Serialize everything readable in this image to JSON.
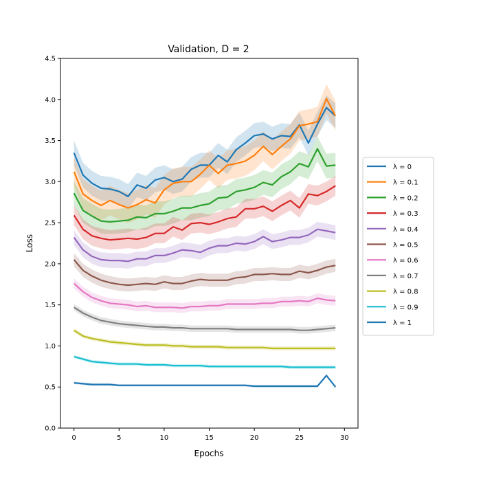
{
  "chart_data": {
    "type": "line",
    "title": "Validation, D = 2",
    "xlabel": "Epochs",
    "ylabel": "Loss",
    "xlim": [
      -1.5,
      31.5
    ],
    "ylim": [
      0.0,
      4.5
    ],
    "xticks": [
      0,
      5,
      10,
      15,
      20,
      25,
      30
    ],
    "xtick_labels": [
      "0",
      "5",
      "10",
      "15",
      "20",
      "25",
      "30"
    ],
    "yticks": [
      0.0,
      0.5,
      1.0,
      1.5,
      2.0,
      2.5,
      3.0,
      3.5,
      4.0,
      4.5
    ],
    "ytick_labels": [
      "0.0",
      "0.5",
      "1.0",
      "1.5",
      "2.0",
      "2.5",
      "3.0",
      "3.5",
      "4.0",
      "4.5"
    ],
    "grid": false,
    "legend_position": "outside-right",
    "x": [
      0,
      1,
      2,
      3,
      4,
      5,
      6,
      7,
      8,
      9,
      10,
      11,
      12,
      13,
      14,
      15,
      16,
      17,
      18,
      19,
      20,
      21,
      22,
      23,
      24,
      25,
      26,
      27,
      28,
      29
    ],
    "series": [
      {
        "name": "λ = 0",
        "color": "#1f77b4",
        "band": 0.15,
        "values": [
          3.35,
          3.08,
          2.98,
          2.92,
          2.91,
          2.88,
          2.82,
          2.96,
          2.92,
          3.02,
          3.05,
          3.0,
          3.03,
          3.15,
          3.2,
          3.2,
          3.32,
          3.24,
          3.39,
          3.47,
          3.56,
          3.58,
          3.52,
          3.56,
          3.55,
          3.69,
          3.47,
          3.7,
          3.9,
          3.8
        ]
      },
      {
        "name": "λ = 0.1",
        "color": "#ff7f0e",
        "band": 0.18,
        "values": [
          3.12,
          2.85,
          2.77,
          2.71,
          2.77,
          2.72,
          2.68,
          2.72,
          2.78,
          2.74,
          2.9,
          2.98,
          3.0,
          3.0,
          3.09,
          3.2,
          3.1,
          3.2,
          3.22,
          3.25,
          3.32,
          3.43,
          3.33,
          3.43,
          3.52,
          3.68,
          3.7,
          3.73,
          4.01,
          3.8
        ]
      },
      {
        "name": "λ = 0.2",
        "color": "#2ca02c",
        "band": 0.15,
        "values": [
          2.86,
          2.65,
          2.58,
          2.52,
          2.51,
          2.52,
          2.53,
          2.57,
          2.56,
          2.61,
          2.61,
          2.64,
          2.68,
          2.68,
          2.71,
          2.73,
          2.8,
          2.81,
          2.88,
          2.9,
          2.93,
          2.99,
          2.96,
          3.06,
          3.12,
          3.22,
          3.18,
          3.4,
          3.19,
          3.2
        ]
      },
      {
        "name": "λ = 0.3",
        "color": "#d62728",
        "band": 0.12,
        "values": [
          2.59,
          2.42,
          2.34,
          2.31,
          2.29,
          2.3,
          2.31,
          2.3,
          2.32,
          2.37,
          2.37,
          2.45,
          2.41,
          2.49,
          2.5,
          2.48,
          2.51,
          2.55,
          2.57,
          2.67,
          2.67,
          2.7,
          2.64,
          2.71,
          2.77,
          2.68,
          2.85,
          2.83,
          2.88,
          2.95
        ]
      },
      {
        "name": "λ = 0.4",
        "color": "#9467bd",
        "band": 0.09,
        "values": [
          2.32,
          2.17,
          2.09,
          2.05,
          2.04,
          2.04,
          2.03,
          2.06,
          2.06,
          2.1,
          2.1,
          2.13,
          2.17,
          2.16,
          2.14,
          2.19,
          2.22,
          2.22,
          2.25,
          2.24,
          2.27,
          2.33,
          2.27,
          2.29,
          2.32,
          2.32,
          2.35,
          2.42,
          2.4,
          2.38
        ]
      },
      {
        "name": "λ = 0.5",
        "color": "#8c564b",
        "band": 0.08,
        "values": [
          2.05,
          1.92,
          1.85,
          1.8,
          1.77,
          1.75,
          1.74,
          1.75,
          1.76,
          1.75,
          1.78,
          1.76,
          1.76,
          1.79,
          1.81,
          1.8,
          1.8,
          1.8,
          1.83,
          1.84,
          1.87,
          1.87,
          1.88,
          1.87,
          1.87,
          1.91,
          1.89,
          1.92,
          1.96,
          1.98
        ]
      },
      {
        "name": "λ = 0.6",
        "color": "#e377c2",
        "band": 0.06,
        "values": [
          1.76,
          1.66,
          1.59,
          1.55,
          1.52,
          1.51,
          1.5,
          1.48,
          1.49,
          1.47,
          1.47,
          1.47,
          1.46,
          1.48,
          1.48,
          1.49,
          1.49,
          1.51,
          1.51,
          1.51,
          1.51,
          1.52,
          1.52,
          1.54,
          1.54,
          1.55,
          1.54,
          1.58,
          1.56,
          1.55
        ]
      },
      {
        "name": "λ = 0.7",
        "color": "#7f7f7f",
        "band": 0.04,
        "values": [
          1.47,
          1.4,
          1.35,
          1.31,
          1.29,
          1.27,
          1.26,
          1.25,
          1.24,
          1.23,
          1.23,
          1.22,
          1.22,
          1.21,
          1.21,
          1.21,
          1.21,
          1.21,
          1.2,
          1.2,
          1.2,
          1.2,
          1.2,
          1.2,
          1.2,
          1.19,
          1.19,
          1.2,
          1.21,
          1.22
        ]
      },
      {
        "name": "λ = 0.8",
        "color": "#bcbd22",
        "band": 0.025,
        "values": [
          1.19,
          1.12,
          1.09,
          1.07,
          1.05,
          1.04,
          1.03,
          1.02,
          1.01,
          1.01,
          1.01,
          1.0,
          1.0,
          0.99,
          0.99,
          0.99,
          0.99,
          0.98,
          0.98,
          0.98,
          0.98,
          0.98,
          0.97,
          0.97,
          0.97,
          0.97,
          0.97,
          0.97,
          0.97,
          0.97
        ]
      },
      {
        "name": "λ = 0.9",
        "color": "#17becf",
        "band": 0.02,
        "values": [
          0.87,
          0.84,
          0.81,
          0.8,
          0.79,
          0.78,
          0.78,
          0.78,
          0.77,
          0.77,
          0.77,
          0.76,
          0.76,
          0.76,
          0.76,
          0.75,
          0.75,
          0.75,
          0.75,
          0.75,
          0.75,
          0.75,
          0.75,
          0.75,
          0.74,
          0.74,
          0.74,
          0.74,
          0.74,
          0.74
        ]
      },
      {
        "name": "λ = 1",
        "color": "#1f77b4",
        "band": 0.015,
        "values": [
          0.55,
          0.54,
          0.53,
          0.53,
          0.53,
          0.52,
          0.52,
          0.52,
          0.52,
          0.52,
          0.52,
          0.52,
          0.52,
          0.52,
          0.52,
          0.52,
          0.52,
          0.52,
          0.52,
          0.52,
          0.51,
          0.51,
          0.51,
          0.51,
          0.51,
          0.51,
          0.51,
          0.51,
          0.64,
          0.5
        ]
      }
    ]
  }
}
